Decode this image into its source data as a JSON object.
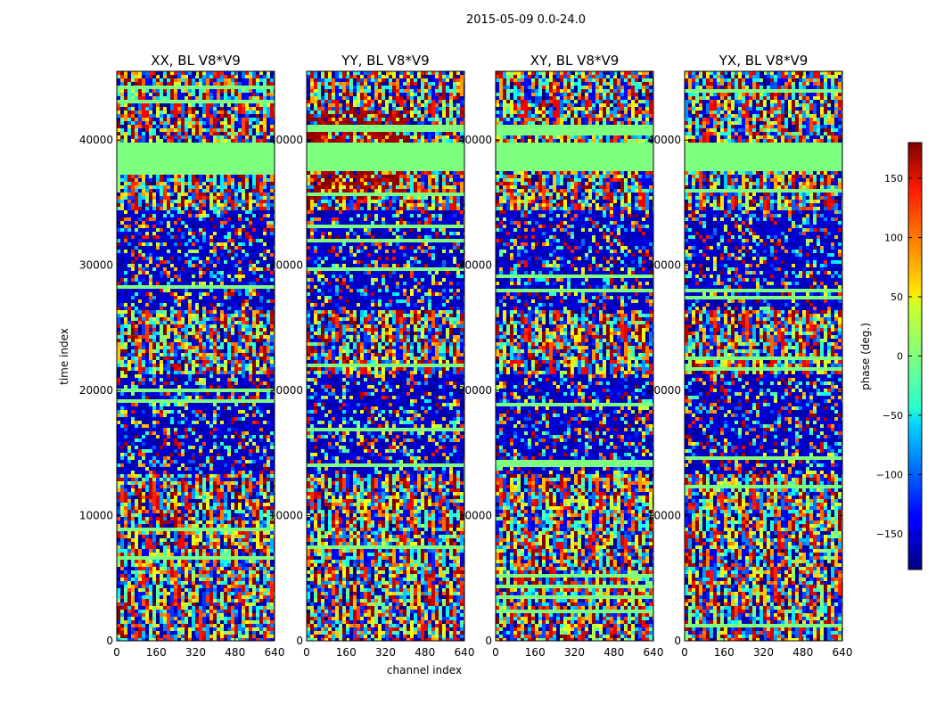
{
  "chart_data": {
    "type": "heatmap",
    "title": "2015-05-09 0.0-24.0",
    "xlabel": "channel index",
    "ylabel": "time index",
    "xlim": [
      0,
      640
    ],
    "ylim": [
      0,
      45500
    ],
    "x_ticks": [
      "0",
      "160",
      "320",
      "480",
      "640"
    ],
    "y_ticks": [
      "0",
      "10000",
      "20000",
      "30000",
      "40000"
    ],
    "y_tick_values": [
      0,
      10000,
      20000,
      30000,
      40000
    ],
    "grid": false,
    "colormap": "jet",
    "colorbar": {
      "label": "phase (deg.)",
      "range": [
        -180,
        180
      ],
      "ticks": [
        "−150",
        "−100",
        "−50",
        "0",
        "50",
        "100",
        "150"
      ],
      "tick_values": [
        -150,
        -100,
        -50,
        0,
        50,
        100,
        150
      ]
    },
    "panels": [
      {
        "title": "XX, BL V8*V9",
        "polarization": "XX"
      },
      {
        "title": "YY, BL V8*V9",
        "polarization": "YY"
      },
      {
        "title": "XY, BL V8*V9",
        "polarization": "XY"
      },
      {
        "title": "YX, BL V8*V9",
        "polarization": "YX"
      }
    ],
    "flagged_time_ranges": [
      [
        37800,
        39900
      ]
    ],
    "colors": {
      "flagged": "#7fff7f",
      "low": "#00007f",
      "mid": "#7fff7f",
      "high": "#7f0000"
    }
  }
}
